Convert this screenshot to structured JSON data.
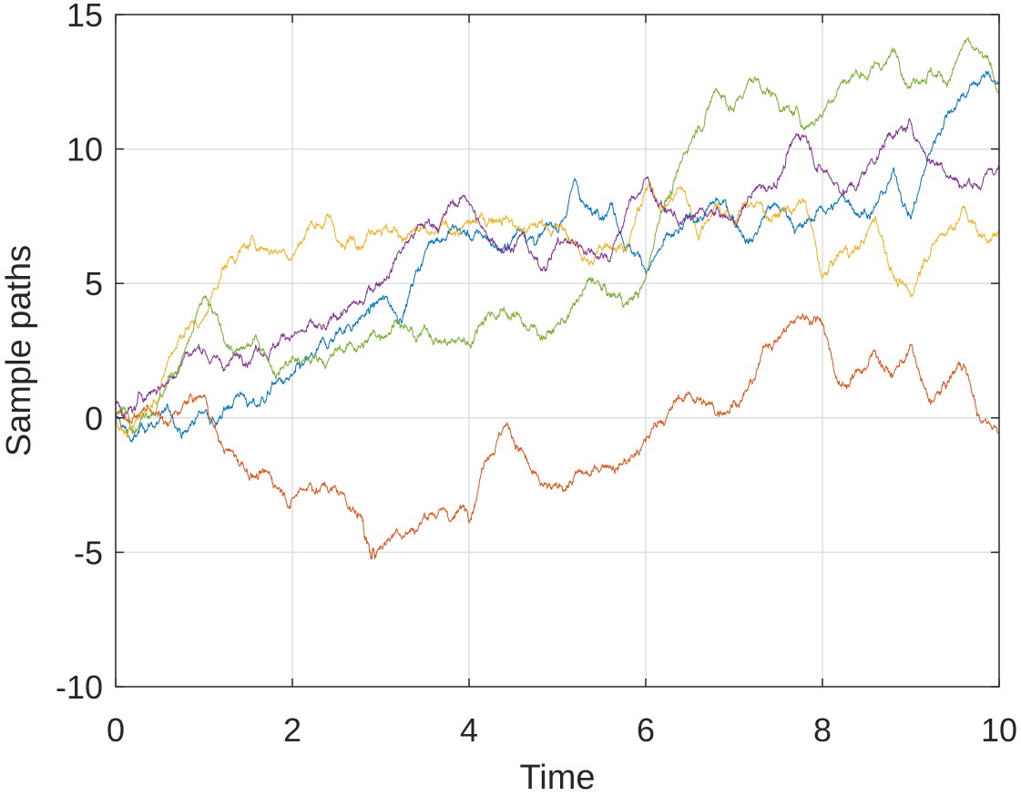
{
  "chart_data": {
    "type": "line",
    "title": "",
    "xlabel": "Time",
    "ylabel": "Sample paths",
    "xlim": [
      0,
      10
    ],
    "ylim": [
      -10,
      15
    ],
    "xticks": [
      0,
      2,
      4,
      6,
      8,
      10
    ],
    "xtick_labels": [
      "0",
      "2",
      "4",
      "6",
      "8",
      "10"
    ],
    "yticks": [
      -10,
      -5,
      0,
      5,
      10,
      15
    ],
    "ytick_labels": [
      "-10",
      "-5",
      "0",
      "5",
      "10",
      "15"
    ],
    "grid": true,
    "legend": "none",
    "series": [
      {
        "color": "#0072BD",
        "x": [
          0,
          0.2,
          0.4,
          0.6,
          0.8,
          1.0,
          1.2,
          1.4,
          1.6,
          1.8,
          2.0,
          2.2,
          2.4,
          2.6,
          2.8,
          3.0,
          3.2,
          3.4,
          3.6,
          3.8,
          4.0,
          4.2,
          4.4,
          4.6,
          4.8,
          5.0,
          5.2,
          5.4,
          5.6,
          5.8,
          6.0,
          6.2,
          6.4,
          6.6,
          6.8,
          7.0,
          7.2,
          7.4,
          7.6,
          7.8,
          8.0,
          8.2,
          8.4,
          8.6,
          8.8,
          9.0,
          9.2,
          9.4,
          9.6,
          9.8,
          10.0
        ],
        "y": [
          0,
          -0.8,
          -0.2,
          0.3,
          -0.5,
          0.2,
          0,
          0.8,
          0.4,
          1.3,
          1.6,
          2.3,
          2.6,
          3.3,
          3.8,
          4.4,
          3.5,
          5.5,
          6.5,
          7.0,
          6.8,
          6.7,
          6.4,
          7.0,
          6.7,
          6.9,
          8.9,
          7.6,
          8.0,
          6.4,
          5.4,
          6.6,
          7.0,
          7.3,
          8.1,
          7.3,
          6.6,
          7.8,
          7.5,
          7.3,
          7.8,
          8.2,
          7.6,
          7.9,
          9.2,
          7.4,
          9.8,
          11.2,
          12.0,
          12.7,
          12.5
        ]
      },
      {
        "color": "#D95319",
        "x": [
          0,
          0.2,
          0.4,
          0.6,
          0.8,
          1.0,
          1.2,
          1.4,
          1.6,
          1.8,
          2.0,
          2.2,
          2.4,
          2.6,
          2.8,
          2.9,
          3.0,
          3.2,
          3.4,
          3.6,
          3.8,
          4.0,
          4.2,
          4.4,
          4.6,
          4.8,
          5.0,
          5.2,
          5.4,
          5.6,
          5.8,
          6.0,
          6.2,
          6.4,
          6.6,
          6.8,
          7.0,
          7.2,
          7.4,
          7.6,
          7.8,
          8.0,
          8.2,
          8.4,
          8.6,
          8.8,
          9.0,
          9.2,
          9.4,
          9.6,
          9.8,
          10.0
        ],
        "y": [
          0,
          0,
          0.3,
          -0.2,
          0.6,
          0.8,
          -1.0,
          -1.8,
          -2.2,
          -2.5,
          -3.0,
          -2.4,
          -2.7,
          -3.0,
          -3.8,
          -5.2,
          -4.8,
          -4.3,
          -4.2,
          -3.6,
          -3.8,
          -3.9,
          -1.6,
          -0.3,
          -1.2,
          -2.4,
          -2.6,
          -2.1,
          -2.0,
          -1.8,
          -1.6,
          -0.9,
          -0.2,
          0.7,
          0.7,
          0.1,
          0.6,
          1.3,
          2.7,
          3.4,
          3.7,
          3.5,
          1.2,
          1.8,
          2.5,
          1.6,
          2.7,
          0.7,
          1.2,
          2.0,
          -0.2,
          -0.5
        ]
      },
      {
        "color": "#EDB120",
        "x": [
          0,
          0.2,
          0.4,
          0.6,
          0.8,
          1.0,
          1.2,
          1.4,
          1.6,
          1.8,
          2.0,
          2.2,
          2.4,
          2.6,
          2.8,
          3.0,
          3.2,
          3.4,
          3.6,
          3.8,
          4.0,
          4.2,
          4.4,
          4.6,
          4.8,
          5.0,
          5.2,
          5.4,
          5.6,
          5.8,
          6.0,
          6.2,
          6.4,
          6.6,
          6.8,
          7.0,
          7.2,
          7.4,
          7.6,
          7.8,
          8.0,
          8.2,
          8.4,
          8.6,
          8.8,
          9.0,
          9.2,
          9.4,
          9.6,
          9.8,
          10.0
        ],
        "y": [
          0,
          -0.4,
          0.5,
          2.2,
          3.3,
          3.7,
          5.5,
          6.2,
          6.3,
          6.2,
          6.0,
          7.2,
          7.6,
          6.3,
          6.3,
          6.9,
          6.7,
          7.1,
          6.9,
          6.8,
          7.3,
          7.1,
          7.4,
          7.0,
          7.3,
          7.2,
          6.6,
          5.7,
          6.3,
          6.4,
          8.5,
          7.8,
          8.6,
          6.6,
          7.9,
          7.2,
          8.0,
          7.4,
          7.9,
          8.1,
          5.2,
          6.2,
          6.4,
          7.5,
          5.3,
          4.5,
          5.9,
          6.8,
          7.8,
          6.8,
          7.0
        ]
      },
      {
        "color": "#7E2F8E",
        "x": [
          0,
          0.2,
          0.4,
          0.6,
          0.8,
          1.0,
          1.2,
          1.4,
          1.6,
          1.8,
          2.0,
          2.2,
          2.4,
          2.6,
          2.8,
          3.0,
          3.2,
          3.4,
          3.6,
          3.8,
          4.0,
          4.2,
          4.4,
          4.6,
          4.8,
          5.0,
          5.2,
          5.4,
          5.6,
          5.8,
          6.0,
          6.2,
          6.4,
          6.6,
          6.8,
          7.0,
          7.2,
          7.4,
          7.6,
          7.8,
          8.0,
          8.2,
          8.4,
          8.6,
          8.8,
          9.0,
          9.2,
          9.4,
          9.6,
          9.8,
          10.0
        ],
        "y": [
          0.6,
          0.3,
          1.0,
          1.4,
          2.4,
          2.5,
          2.0,
          2.2,
          2.5,
          2.6,
          3.0,
          3.6,
          3.4,
          4.0,
          4.2,
          5.0,
          6.2,
          7.0,
          7.2,
          8.0,
          8.0,
          6.8,
          6.2,
          6.9,
          5.6,
          6.6,
          6.4,
          6.2,
          5.9,
          7.8,
          8.9,
          7.8,
          7.2,
          7.7,
          7.8,
          7.3,
          8.3,
          8.6,
          9.8,
          10.5,
          9.2,
          8.4,
          8.6,
          9.5,
          10.4,
          11.0,
          9.6,
          9.0,
          8.6,
          8.6,
          9.3
        ]
      },
      {
        "color": "#77AC30",
        "x": [
          0,
          0.2,
          0.4,
          0.6,
          0.8,
          1.0,
          1.2,
          1.4,
          1.6,
          1.8,
          2.0,
          2.2,
          2.4,
          2.6,
          2.8,
          3.0,
          3.2,
          3.4,
          3.6,
          3.8,
          4.0,
          4.2,
          4.4,
          4.6,
          4.8,
          5.0,
          5.2,
          5.4,
          5.6,
          5.8,
          6.0,
          6.2,
          6.4,
          6.6,
          6.8,
          7.0,
          7.2,
          7.4,
          7.6,
          7.8,
          8.0,
          8.2,
          8.4,
          8.6,
          8.8,
          9.0,
          9.2,
          9.4,
          9.6,
          9.8,
          10.0
        ],
        "y": [
          0,
          -0.5,
          0.1,
          1.5,
          2.6,
          4.5,
          3.2,
          2.5,
          2.9,
          1.6,
          2.3,
          2.1,
          2.1,
          2.5,
          2.6,
          3.0,
          3.6,
          2.8,
          2.8,
          2.9,
          2.7,
          3.8,
          4.0,
          3.5,
          3.0,
          3.5,
          4.2,
          5.2,
          4.5,
          4.2,
          5.2,
          7.8,
          9.5,
          10.8,
          12.2,
          11.5,
          12.6,
          12.2,
          11.6,
          10.8,
          11.2,
          12.4,
          12.8,
          13.2,
          13.6,
          12.3,
          12.9,
          12.4,
          13.9,
          13.6,
          12.0
        ]
      }
    ]
  }
}
